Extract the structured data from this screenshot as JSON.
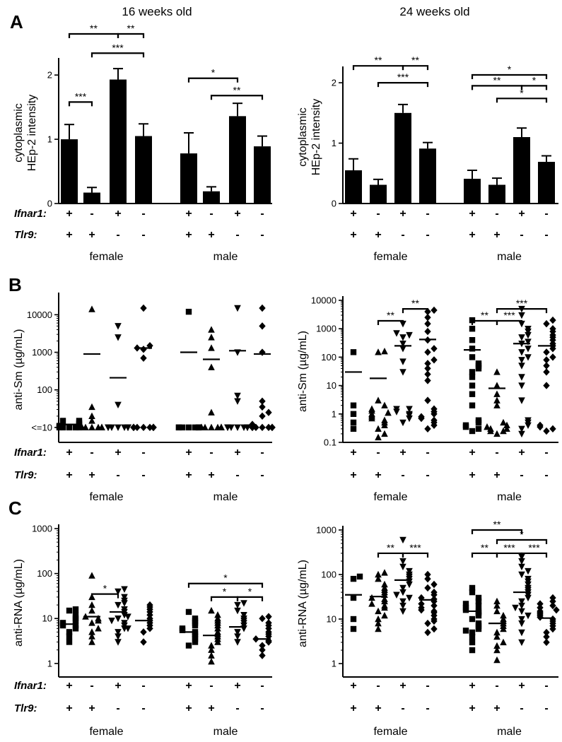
{
  "colors": {
    "ink": "#000000",
    "background": "#ffffff"
  },
  "headers": {
    "left": "16 weeks old",
    "right": "24 weeks old"
  },
  "panel_letters": {
    "a": "A",
    "b": "B",
    "c": "C"
  },
  "genotype": {
    "ifnar1_label": "Ifnar1:",
    "tlr9_label": "Tlr9:",
    "ifnar1": [
      "+",
      "-",
      "+",
      "-",
      "+",
      "-",
      "+",
      "-"
    ],
    "tlr9": [
      "+",
      "+",
      "-",
      "-",
      "+",
      "+",
      "-",
      "-"
    ]
  },
  "sex_labels": [
    "female",
    "male"
  ],
  "chart_data": [
    {
      "id": "A16",
      "type": "bar",
      "title": "16 weeks old",
      "ylabel": "cytoplasmic HEp-2 intensity",
      "ylabel_lines": [
        "cytoplasmic",
        "HEp-2 intensity"
      ],
      "ylim": [
        0,
        2.2
      ],
      "yticks": [
        0,
        1,
        2
      ],
      "ytick_labels": [
        "0",
        "1",
        "2"
      ],
      "groups": [
        "female",
        "male"
      ],
      "values": [
        1.0,
        0.17,
        1.93,
        1.05,
        0.78,
        0.19,
        1.36,
        0.89
      ],
      "errors": [
        0.23,
        0.08,
        0.17,
        0.19,
        0.32,
        0.07,
        0.2,
        0.16
      ],
      "significance": [
        {
          "from": 0,
          "to": 1,
          "label": "***",
          "yv": 1.58
        },
        {
          "from": 0,
          "to": 2,
          "label": "**",
          "yv": 2.64
        },
        {
          "from": 2,
          "to": 3,
          "label": "**",
          "yv": 2.64
        },
        {
          "from": 1,
          "to": 3,
          "label": "***",
          "yv": 2.34
        },
        {
          "from": 4,
          "to": 6,
          "label": "*",
          "yv": 1.95
        },
        {
          "from": 5,
          "to": 7,
          "label": "**",
          "yv": 1.68
        }
      ]
    },
    {
      "id": "A24",
      "type": "bar",
      "title": "24 weeks old",
      "ylabel": "cytoplasmic HEp-2 intensity",
      "ylabel_lines": [
        "cytoplasmic",
        "HEp-2 intensity"
      ],
      "ylim": [
        0,
        2.2
      ],
      "yticks": [
        0,
        1,
        2
      ],
      "ytick_labels": [
        "0",
        "1",
        "2"
      ],
      "groups": [
        "female",
        "male"
      ],
      "values": [
        0.55,
        0.31,
        1.5,
        0.91,
        0.41,
        0.31,
        1.1,
        0.69
      ],
      "errors": [
        0.19,
        0.09,
        0.14,
        0.1,
        0.14,
        0.11,
        0.15,
        0.1
      ],
      "significance": [
        {
          "from": 0,
          "to": 2,
          "label": "**",
          "yv": 2.28
        },
        {
          "from": 2,
          "to": 3,
          "label": "**",
          "yv": 2.28
        },
        {
          "from": 1,
          "to": 3,
          "label": "***",
          "yv": 2.0
        },
        {
          "from": 4,
          "to": 7,
          "label": "*",
          "yv": 2.13
        },
        {
          "from": 4,
          "to": 6,
          "label": "**",
          "yv": 1.95
        },
        {
          "from": 6,
          "to": 7,
          "label": "*",
          "yv": 1.95
        },
        {
          "from": 5,
          "to": 7,
          "label": "*",
          "yv": 1.74
        }
      ]
    },
    {
      "id": "B16",
      "type": "scatter",
      "scale": "log",
      "ylabel": "anti-Sm (µg/mL)",
      "ylim": [
        4,
        30000
      ],
      "yticks": [
        10,
        100,
        1000,
        10000
      ],
      "ytick_labels": [
        "<=10",
        "100",
        "1000",
        "10000"
      ],
      "groups": [
        "female",
        "male"
      ],
      "markers": [
        "square",
        "triangle-up",
        "triangle-down",
        "diamond",
        "square",
        "triangle-up",
        "triangle-down",
        "diamond"
      ],
      "points": [
        [
          10,
          10,
          10,
          10,
          10,
          11,
          11,
          12,
          13,
          15,
          15
        ],
        [
          10,
          10,
          10,
          10,
          10,
          10,
          10,
          10,
          15,
          20,
          35,
          14000
        ],
        [
          10,
          10,
          10,
          10,
          10,
          10,
          10,
          10,
          40,
          2500,
          5000
        ],
        [
          10,
          10,
          10,
          10,
          10,
          10,
          10,
          10,
          10,
          10,
          1200,
          1500,
          700,
          1300,
          15000
        ],
        [
          10,
          10,
          10,
          10,
          10,
          10,
          10,
          10,
          12000
        ],
        [
          10,
          10,
          10,
          10,
          10,
          10,
          10,
          10,
          10,
          10,
          25,
          1300,
          2500,
          4000,
          400
        ],
        [
          10,
          10,
          10,
          10,
          10,
          10,
          10,
          10,
          50,
          70,
          1000,
          15000
        ],
        [
          10,
          10,
          10,
          10,
          10,
          10,
          10,
          10,
          12,
          20,
          25,
          35,
          50,
          1000,
          5000,
          15000
        ]
      ],
      "means": [
        12,
        900,
        210,
        1300,
        1000,
        650,
        1100,
        900
      ],
      "significance": []
    },
    {
      "id": "B24",
      "type": "scatter",
      "scale": "log",
      "ylabel": "anti-Sm (µg/mL)",
      "ylim": [
        0.1,
        10000
      ],
      "yticks": [
        0.1,
        1,
        10,
        100,
        1000,
        10000
      ],
      "ytick_labels": [
        "0.1",
        "1",
        "10",
        "100",
        "1000",
        "10000"
      ],
      "groups": [
        "female",
        "male"
      ],
      "markers": [
        "square",
        "triangle-up",
        "triangle-down",
        "diamond",
        "square",
        "triangle-up",
        "triangle-down",
        "diamond"
      ],
      "points": [
        [
          0.3,
          0.5,
          1,
          2,
          150
        ],
        [
          0.15,
          0.2,
          0.3,
          0.4,
          0.5,
          0.6,
          0.7,
          0.8,
          0.9,
          1,
          1.1,
          1.3,
          1.5,
          2,
          3,
          150,
          160
        ],
        [
          0.5,
          0.7,
          0.9,
          1,
          1.2,
          1.5,
          1.5,
          30,
          70,
          200,
          300,
          500,
          600,
          700,
          1500
        ],
        [
          0.3,
          0.4,
          0.5,
          0.6,
          0.7,
          0.8,
          1,
          1.2,
          1.5,
          3,
          15,
          25,
          40,
          60,
          80,
          150,
          200,
          400,
          800,
          1500,
          2500,
          4000,
          4500
        ],
        [
          0.25,
          0.3,
          0.35,
          0.4,
          0.5,
          0.6,
          2,
          5,
          10,
          20,
          30,
          40,
          50,
          60,
          100,
          200,
          400,
          1000,
          2000
        ],
        [
          0.2,
          0.25,
          0.25,
          0.3,
          0.3,
          0.35,
          0.4,
          0.5,
          2,
          3,
          5,
          10,
          30
        ],
        [
          0.2,
          0.3,
          0.4,
          0.5,
          0.6,
          3,
          10,
          20,
          50,
          80,
          100,
          150,
          200,
          300,
          350,
          500,
          600,
          800,
          1000,
          1500,
          3000,
          5000
        ],
        [
          0.25,
          0.3,
          0.35,
          0.4,
          10,
          30,
          50,
          80,
          100,
          150,
          200,
          250,
          300,
          400,
          500,
          600,
          800,
          1000,
          1500,
          2000
        ]
      ],
      "means": [
        30,
        18,
        250,
        420,
        180,
        8,
        300,
        250
      ],
      "significance": [
        {
          "from": 2,
          "to": 3,
          "label": "**",
          "yv": 5000
        },
        {
          "from": 1,
          "to": 2,
          "label": "**",
          "yv": 1900
        },
        {
          "from": 5,
          "to": 7,
          "label": "***",
          "yv": 5000
        },
        {
          "from": 4,
          "to": 5,
          "label": "**",
          "yv": 1900
        },
        {
          "from": 5,
          "to": 6,
          "label": "***",
          "yv": 1900
        }
      ]
    },
    {
      "id": "C16",
      "type": "scatter",
      "scale": "log",
      "ylabel": "anti-RNA (µg/mL)",
      "ylim": [
        0.5,
        1000
      ],
      "yticks": [
        1,
        10,
        100,
        1000
      ],
      "ytick_labels": [
        "1",
        "10",
        "100",
        "1000"
      ],
      "groups": [
        "female",
        "male"
      ],
      "markers": [
        "square",
        "triangle-up",
        "triangle-down",
        "diamond",
        "square",
        "triangle-up",
        "triangle-down",
        "diamond"
      ],
      "points": [
        [
          3,
          4,
          5,
          6,
          7,
          7,
          8,
          9,
          10,
          12,
          15,
          16
        ],
        [
          3,
          4,
          5,
          6,
          8,
          9,
          10,
          11,
          15,
          20,
          30,
          90
        ],
        [
          3,
          4,
          5,
          6,
          7,
          8,
          10,
          12,
          14,
          16,
          20,
          22,
          25,
          30,
          40,
          45,
          6,
          9,
          11
        ],
        [
          3,
          5,
          6,
          7,
          8,
          9,
          10,
          12,
          14,
          16,
          18,
          20
        ]
      ],
      "means": [
        7.5,
        11,
        14,
        9
      ],
      "significance": []
    },
    {
      "id": "C24",
      "type": "scatter",
      "scale": "log",
      "ylabel": "anti-RNA (µg/mL)",
      "ylim": [
        0.5,
        1000
      ],
      "yticks": [
        1,
        10,
        100,
        1000
      ],
      "ytick_labels": [
        "1",
        "10",
        "100",
        "1000"
      ],
      "groups": [
        "female",
        "male"
      ],
      "markers": [
        "square",
        "triangle-up",
        "triangle-down",
        "diamond",
        "square",
        "triangle-up",
        "triangle-down",
        "diamond"
      ],
      "points": [
        [
          6,
          10,
          30,
          80,
          90
        ],
        [
          6,
          8,
          10,
          12,
          15,
          18,
          20,
          22,
          25,
          28,
          30,
          35,
          40,
          45,
          50,
          60,
          80,
          100,
          110
        ],
        [
          20,
          25,
          30,
          40,
          50,
          60,
          70,
          80,
          90,
          100,
          120,
          150,
          200,
          600,
          15,
          35
        ],
        [
          5,
          6,
          8,
          9,
          10,
          12,
          14,
          15,
          16,
          18,
          20,
          22,
          25,
          28,
          30,
          35,
          40,
          50,
          60,
          80,
          100
        ]
      ],
      "means": [
        35,
        32,
        75,
        27
      ],
      "significance": [
        {
          "from": 1,
          "to": 2,
          "label": "**",
          "yv": 300
        },
        {
          "from": 2,
          "to": 3,
          "label": "***",
          "yv": 300
        }
      ]
    }
  ],
  "c16_male": {
    "points": [
      [
        2.5,
        3,
        3.5,
        4,
        4.5,
        5,
        5.5,
        6,
        7,
        8,
        9,
        10,
        14
      ],
      [
        1.1,
        1.5,
        2,
        2.5,
        3,
        3.5,
        4,
        4.5,
        5,
        6,
        7,
        8,
        9,
        10,
        12,
        15
      ],
      [
        3,
        4,
        5,
        6,
        7,
        8,
        9,
        10,
        12,
        15,
        20,
        22
      ],
      [
        1.5,
        2,
        2.5,
        3,
        3.2,
        3.5,
        4,
        4.5,
        5,
        6,
        7,
        8,
        10,
        11
      ]
    ],
    "means": [
      5,
      4.2,
      6.5,
      3.5
    ],
    "significance": [
      {
        "from": 4,
        "to": 7,
        "label": "*",
        "yv": 60
      },
      {
        "from": 5,
        "to": 6,
        "label": "*",
        "yv": 30
      },
      {
        "from": 6,
        "to": 7,
        "label": "*",
        "yv": 30
      }
    ],
    "female_significance": [
      {
        "from": 1,
        "to": 2,
        "label": "*",
        "yv": 35
      }
    ]
  },
  "c24_male": {
    "points": [
      [
        2,
        3,
        4,
        5,
        6,
        7,
        8,
        10,
        12,
        14,
        15,
        16,
        18,
        20,
        22,
        25,
        30,
        40,
        50,
        5.5
      ],
      [
        1.2,
        2,
        2.5,
        3,
        4,
        5,
        6,
        7,
        8,
        9,
        10,
        12,
        15,
        20,
        25
      ],
      [
        3,
        5,
        8,
        10,
        15,
        20,
        25,
        30,
        35,
        40,
        45,
        50,
        60,
        70,
        80,
        100,
        120,
        150,
        200,
        250,
        12,
        18
      ],
      [
        3,
        4,
        5,
        6,
        7,
        8,
        9,
        10,
        11,
        12,
        13,
        14,
        15,
        16,
        18,
        20,
        22,
        25,
        30
      ]
    ],
    "means": [
      15,
      8,
      40,
      10.5
    ],
    "significance": [
      {
        "from": 4,
        "to": 6,
        "label": "**",
        "yv": 1000
      },
      {
        "from": 4,
        "to": 5,
        "label": "**",
        "yv": 300
      },
      {
        "from": 5,
        "to": 6,
        "label": "***",
        "yv": 300
      },
      {
        "from": 5,
        "to": 7,
        "label": "*",
        "yv": 600
      },
      {
        "from": 6,
        "to": 7,
        "label": "***",
        "yv": 300
      }
    ]
  }
}
